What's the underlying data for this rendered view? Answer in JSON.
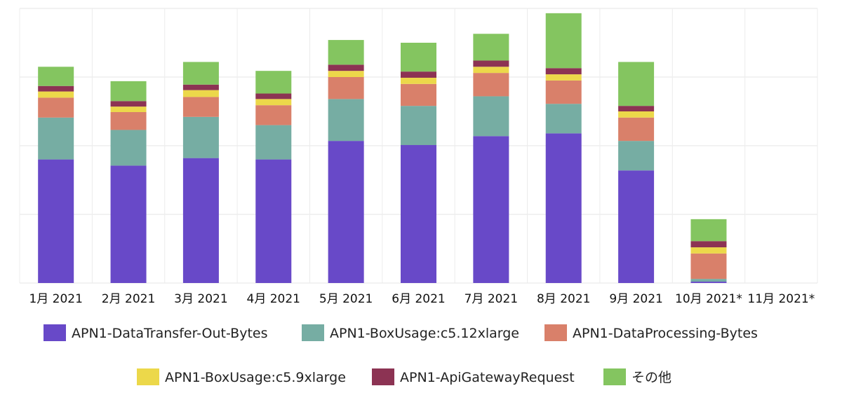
{
  "chart_data": {
    "type": "bar",
    "stacked": true,
    "categories": [
      "1月 2021",
      "2月 2021",
      "3月 2021",
      "4月 2021",
      "5月 2021",
      "6月 2021",
      "7月 2021",
      "8月 2021",
      "9月 2021",
      "10月 2021*",
      "11月 2021*"
    ],
    "ylim": [
      0,
      4
    ],
    "grid": true,
    "legend_position": "bottom",
    "series": [
      {
        "name": "APN1-DataTransfer-Out-Bytes",
        "color": "#6849c8",
        "values": [
          1.8,
          1.71,
          1.82,
          1.8,
          2.07,
          2.01,
          2.14,
          2.18,
          1.64,
          0.02,
          0
        ]
      },
      {
        "name": "APN1-BoxUsage:c5.12xlarge",
        "color": "#76ada3",
        "values": [
          0.61,
          0.52,
          0.6,
          0.5,
          0.61,
          0.57,
          0.58,
          0.43,
          0.43,
          0.04,
          0
        ]
      },
      {
        "name": "APN1-DataProcessing-Bytes",
        "color": "#d9806a",
        "values": [
          0.29,
          0.26,
          0.29,
          0.29,
          0.32,
          0.32,
          0.34,
          0.34,
          0.34,
          0.37,
          0
        ]
      },
      {
        "name": "APN1-BoxUsage:c5.9xlarge",
        "color": "#ecd84a",
        "values": [
          0.09,
          0.08,
          0.1,
          0.09,
          0.09,
          0.09,
          0.09,
          0.09,
          0.09,
          0.09,
          0
        ]
      },
      {
        "name": "APN1-ApiGatewayRequest",
        "color": "#8c3353",
        "values": [
          0.08,
          0.08,
          0.08,
          0.08,
          0.09,
          0.09,
          0.09,
          0.09,
          0.08,
          0.09,
          0
        ]
      },
      {
        "name": "その他",
        "color": "#84c560",
        "values": [
          0.28,
          0.29,
          0.33,
          0.33,
          0.36,
          0.42,
          0.39,
          0.8,
          0.64,
          0.32,
          0
        ]
      }
    ]
  }
}
